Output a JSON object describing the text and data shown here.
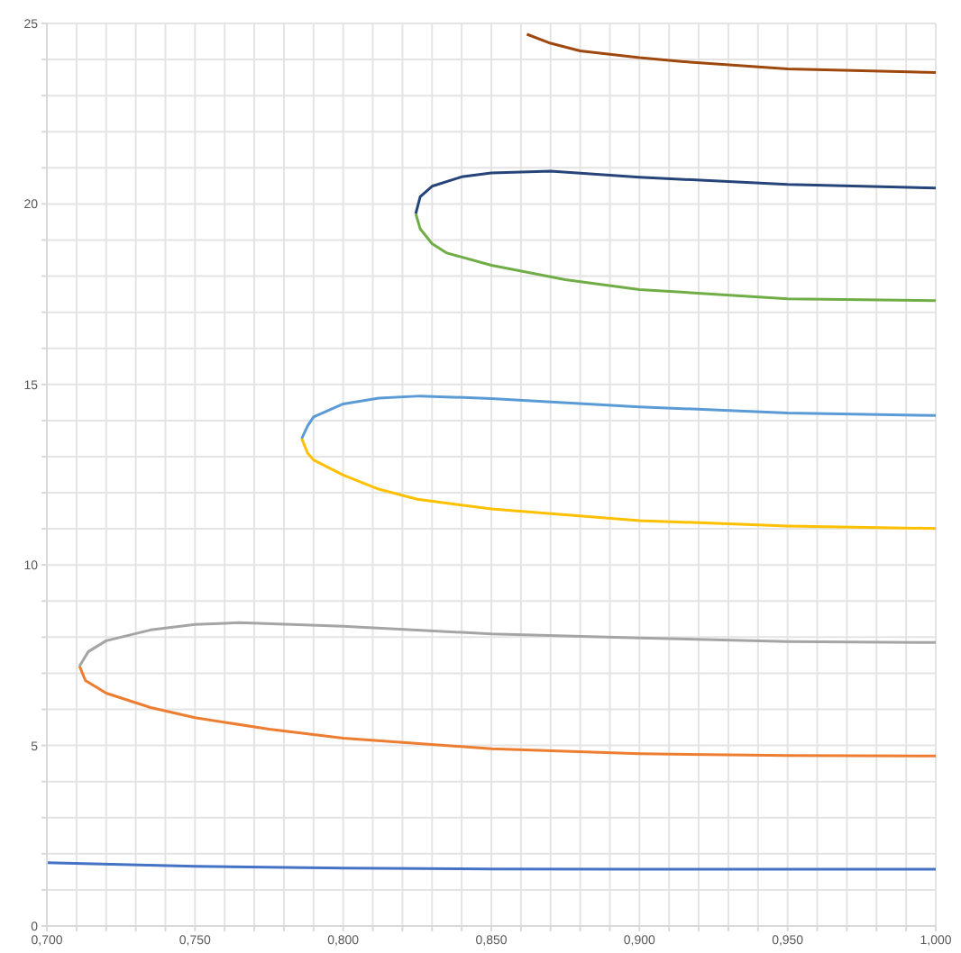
{
  "chart_data": {
    "type": "line",
    "grid": true,
    "marker": "none",
    "line_style": "solid",
    "xlim": [
      0.7,
      1.0
    ],
    "xticks": [
      {
        "value": 0.7,
        "label": "0,700"
      },
      {
        "value": 0.71,
        "label": null
      },
      {
        "value": 0.72,
        "label": null
      },
      {
        "value": 0.73,
        "label": null
      },
      {
        "value": 0.74,
        "label": null
      },
      {
        "value": 0.75,
        "label": "0,750"
      },
      {
        "value": 0.76,
        "label": null
      },
      {
        "value": 0.77,
        "label": null
      },
      {
        "value": 0.78,
        "label": null
      },
      {
        "value": 0.79,
        "label": null
      },
      {
        "value": 0.8,
        "label": "0,800"
      },
      {
        "value": 0.81,
        "label": null
      },
      {
        "value": 0.82,
        "label": null
      },
      {
        "value": 0.83,
        "label": null
      },
      {
        "value": 0.84,
        "label": null
      },
      {
        "value": 0.85,
        "label": "0,850"
      },
      {
        "value": 0.86,
        "label": null
      },
      {
        "value": 0.87,
        "label": null
      },
      {
        "value": 0.88,
        "label": null
      },
      {
        "value": 0.89,
        "label": null
      },
      {
        "value": 0.9,
        "label": "0,900"
      },
      {
        "value": 0.91,
        "label": null
      },
      {
        "value": 0.92,
        "label": null
      },
      {
        "value": 0.93,
        "label": null
      },
      {
        "value": 0.94,
        "label": null
      },
      {
        "value": 0.95,
        "label": "0,950"
      },
      {
        "value": 0.96,
        "label": null
      },
      {
        "value": 0.97,
        "label": null
      },
      {
        "value": 0.98,
        "label": null
      },
      {
        "value": 0.99,
        "label": null
      },
      {
        "value": 1.0,
        "label": "1,000"
      }
    ],
    "ylim": [
      0,
      25
    ],
    "yticks": [
      0,
      {
        "value": 1,
        "label": null
      },
      {
        "value": 2,
        "label": null
      },
      {
        "value": 3,
        "label": null
      },
      {
        "value": 4,
        "label": null
      },
      5,
      {
        "value": 6,
        "label": null
      },
      {
        "value": 7,
        "label": null
      },
      {
        "value": 8,
        "label": null
      },
      {
        "value": 9,
        "label": null
      },
      10,
      {
        "value": 11,
        "label": null
      },
      {
        "value": 12,
        "label": null
      },
      {
        "value": 13,
        "label": null
      },
      {
        "value": 14,
        "label": null
      },
      15,
      {
        "value": 16,
        "label": null
      },
      {
        "value": 17,
        "label": null
      },
      {
        "value": 18,
        "label": null
      },
      {
        "value": 19,
        "label": null
      },
      20,
      {
        "value": 21,
        "label": null
      },
      {
        "value": 22,
        "label": null
      },
      {
        "value": 23,
        "label": null
      },
      {
        "value": 24,
        "label": null
      },
      25
    ],
    "series": [
      {
        "color": "#4472c4",
        "x": [
          0.7,
          0.75,
          0.8,
          0.85,
          0.9,
          0.95,
          1.0
        ],
        "values": [
          1.75,
          1.65,
          1.6,
          1.58,
          1.57,
          1.57,
          1.57
        ]
      },
      {
        "color": "#ed7d31",
        "x": [
          0.711,
          0.713,
          0.72,
          0.735,
          0.75,
          0.775,
          0.8,
          0.85,
          0.9,
          0.95,
          1.0
        ],
        "values": [
          7.2,
          6.8,
          6.45,
          6.05,
          5.77,
          5.45,
          5.2,
          4.91,
          4.77,
          4.72,
          4.71
        ]
      },
      {
        "color": "#a5a5a5",
        "x": [
          0.711,
          0.714,
          0.72,
          0.735,
          0.75,
          0.765,
          0.8,
          0.85,
          0.9,
          0.95,
          1.0
        ],
        "values": [
          7.2,
          7.6,
          7.9,
          8.2,
          8.35,
          8.4,
          8.3,
          8.09,
          7.98,
          7.88,
          7.85
        ]
      },
      {
        "color": "#ffc000",
        "x": [
          0.786,
          0.788,
          0.79,
          0.8,
          0.812,
          0.825,
          0.85,
          0.9,
          0.95,
          1.0
        ],
        "values": [
          13.5,
          13.1,
          12.91,
          12.49,
          12.1,
          11.82,
          11.55,
          11.23,
          11.08,
          11.01
        ]
      },
      {
        "color": "#5b9bd5",
        "x": [
          0.786,
          0.788,
          0.79,
          0.8,
          0.812,
          0.826,
          0.85,
          0.9,
          0.95,
          1.0
        ],
        "values": [
          13.5,
          13.85,
          14.1,
          14.46,
          14.62,
          14.68,
          14.61,
          14.38,
          14.21,
          14.14
        ]
      },
      {
        "color": "#70ad47",
        "x": [
          0.8245,
          0.826,
          0.83,
          0.835,
          0.85,
          0.875,
          0.9,
          0.95,
          1.0
        ],
        "values": [
          19.73,
          19.31,
          18.9,
          18.64,
          18.3,
          17.9,
          17.63,
          17.37,
          17.32
        ]
      },
      {
        "color": "#264478",
        "x": [
          0.8245,
          0.826,
          0.83,
          0.84,
          0.85,
          0.87,
          0.9,
          0.95,
          1.0
        ],
        "values": [
          19.73,
          20.2,
          20.49,
          20.75,
          20.86,
          20.91,
          20.74,
          20.54,
          20.44
        ]
      },
      {
        "color": "#9e480e",
        "x": [
          0.862,
          0.87,
          0.88,
          0.9,
          0.915,
          0.95,
          1.0
        ],
        "values": [
          24.7,
          24.45,
          24.24,
          24.05,
          23.94,
          23.74,
          23.64
        ]
      }
    ]
  }
}
